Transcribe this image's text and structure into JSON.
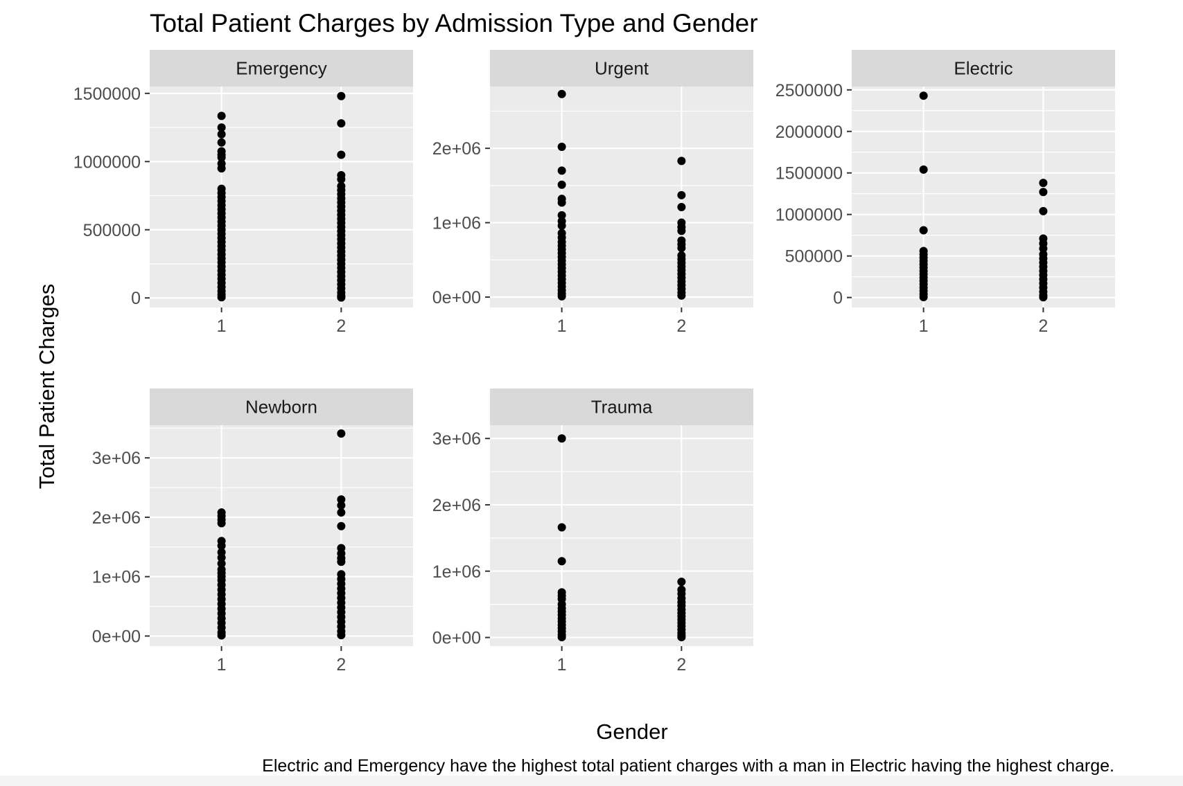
{
  "chart_data": {
    "type": "scatter",
    "title": "Total Patient Charges by Admission Type and Gender",
    "xlabel": "Gender",
    "ylabel": "Total Patient Charges",
    "caption": "Electric and Emergency have the highest total patient charges with a man in Electric having the highest charge.",
    "grid": true,
    "categories": [
      "1",
      "2"
    ],
    "panels": [
      {
        "name": "Emergency",
        "ylim": [
          -70000,
          1550000
        ],
        "yticks": [
          0,
          500000,
          1000000,
          1500000
        ],
        "ytick_labels": [
          "0",
          "500000",
          "1000000",
          "1500000"
        ],
        "series": [
          {
            "x": "1",
            "values": [
              1335000,
              1250000,
              1200000,
              1140000,
              1075000,
              1050000,
              1030000,
              985000,
              950000,
              800000,
              770000,
              740000,
              710000,
              680000,
              650000,
              620000,
              590000,
              560000,
              530000,
              500000,
              470000,
              440000,
              410000,
              380000,
              350000,
              320000,
              290000,
              260000,
              230000,
              200000,
              170000,
              140000,
              110000,
              80000,
              50000,
              25000,
              5000
            ]
          },
          {
            "x": "2",
            "values": [
              1480000,
              1280000,
              1050000,
              900000,
              870000,
              820000,
              790000,
              760000,
              730000,
              700000,
              670000,
              640000,
              610000,
              580000,
              550000,
              520000,
              490000,
              460000,
              430000,
              400000,
              370000,
              340000,
              310000,
              280000,
              250000,
              220000,
              190000,
              160000,
              130000,
              100000,
              70000,
              40000,
              15000,
              3000
            ]
          }
        ]
      },
      {
        "name": "Urgent",
        "ylim": [
          -140000,
          2830000
        ],
        "yticks": [
          0,
          1000000,
          2000000
        ],
        "ytick_labels": [
          "0e+00",
          "1e+06",
          "2e+06"
        ],
        "series": [
          {
            "x": "1",
            "values": [
              2730000,
              2020000,
              1700000,
              1510000,
              1320000,
              1270000,
              1100000,
              1020000,
              960000,
              860000,
              800000,
              740000,
              690000,
              640000,
              590000,
              540000,
              490000,
              440000,
              390000,
              340000,
              290000,
              240000,
              190000,
              140000,
              90000,
              45000,
              10000
            ]
          },
          {
            "x": "2",
            "values": [
              1830000,
              1370000,
              1210000,
              1000000,
              940000,
              890000,
              760000,
              710000,
              660000,
              560000,
              510000,
              460000,
              410000,
              360000,
              310000,
              260000,
              210000,
              160000,
              110000,
              60000,
              20000
            ]
          }
        ]
      },
      {
        "name": "Electric",
        "ylim": [
          -120000,
          2540000
        ],
        "yticks": [
          0,
          500000,
          1000000,
          1500000,
          2000000,
          2500000
        ],
        "ytick_labels": [
          "0",
          "500000",
          "1000000",
          "1500000",
          "2000000",
          "2500000"
        ],
        "series": [
          {
            "x": "1",
            "values": [
              2430000,
              1540000,
              810000,
              560000,
              520000,
              480000,
              440000,
              400000,
              360000,
              320000,
              280000,
              240000,
              200000,
              160000,
              120000,
              80000,
              40000,
              5000
            ]
          },
          {
            "x": "2",
            "values": [
              1380000,
              1270000,
              1040000,
              710000,
              650000,
              590000,
              520000,
              470000,
              420000,
              370000,
              320000,
              270000,
              220000,
              170000,
              120000,
              70000,
              25000,
              3000
            ]
          }
        ]
      },
      {
        "name": "Newborn",
        "ylim": [
          -170000,
          3550000
        ],
        "yticks": [
          0,
          1000000,
          2000000,
          3000000
        ],
        "ytick_labels": [
          "0e+00",
          "1e+06",
          "2e+06",
          "3e+06"
        ],
        "series": [
          {
            "x": "1",
            "values": [
              2080000,
              2020000,
              1960000,
              1900000,
              1600000,
              1520000,
              1410000,
              1320000,
              1220000,
              1120000,
              1060000,
              1000000,
              940000,
              860000,
              780000,
              700000,
              620000,
              540000,
              460000,
              380000,
              300000,
              220000,
              140000,
              60000,
              10000
            ]
          },
          {
            "x": "2",
            "values": [
              3410000,
              2300000,
              2200000,
              2080000,
              1850000,
              1480000,
              1390000,
              1310000,
              1250000,
              1040000,
              960000,
              880000,
              800000,
              720000,
              640000,
              560000,
              480000,
              400000,
              320000,
              240000,
              160000,
              80000,
              15000
            ]
          }
        ]
      },
      {
        "name": "Trauma",
        "ylim": [
          -130000,
          3200000
        ],
        "yticks": [
          0,
          1000000,
          2000000,
          3000000
        ],
        "ytick_labels": [
          "0e+00",
          "1e+06",
          "2e+06",
          "3e+06"
        ],
        "series": [
          {
            "x": "1",
            "values": [
              3000000,
              1660000,
              1150000,
              680000,
              630000,
              580000,
              500000,
              440000,
              390000,
              340000,
              290000,
              240000,
              190000,
              140000,
              90000,
              40000,
              5000
            ]
          },
          {
            "x": "2",
            "values": [
              840000,
              720000,
              660000,
              590000,
              530000,
              480000,
              420000,
              370000,
              320000,
              270000,
              220000,
              170000,
              120000,
              70000,
              30000,
              5000
            ]
          }
        ]
      }
    ]
  }
}
